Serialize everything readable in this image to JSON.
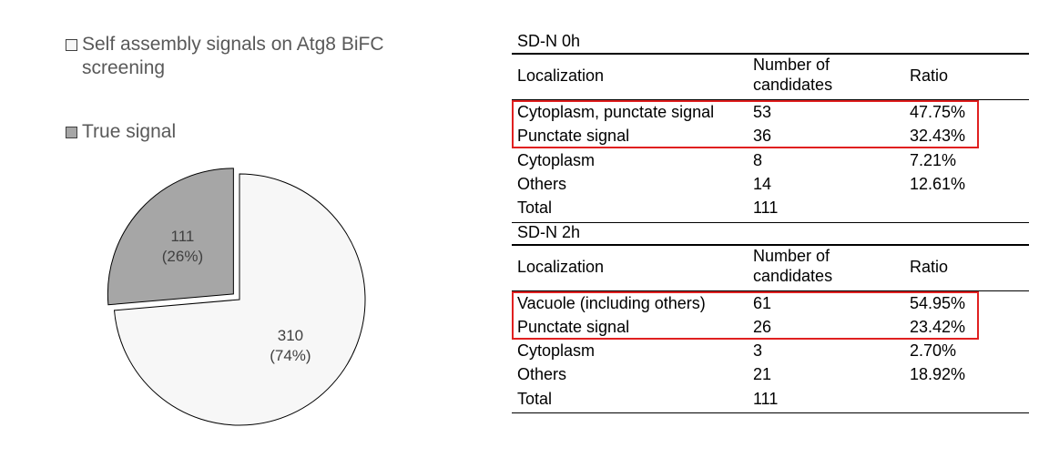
{
  "chart_data": {
    "type": "pie",
    "categories": [
      "Self assembly signals on Atg8 BiFC screening",
      "True signal"
    ],
    "values": [
      310,
      111
    ],
    "percent_labels": [
      "(74%)",
      "(26%)"
    ],
    "colors": [
      "#f7f7f7",
      "#a6a6a6"
    ],
    "explode": [
      false,
      true
    ]
  },
  "tables": [
    {
      "title": "SD-N 0h",
      "columns": [
        "Localization",
        "Number of candidates",
        "Ratio"
      ],
      "rows": [
        [
          "Cytoplasm, punctate signal",
          "53",
          "47.75%"
        ],
        [
          "Punctate signal",
          "36",
          "32.43%"
        ],
        [
          "Cytoplasm",
          "8",
          "7.21%"
        ],
        [
          "Others",
          "14",
          "12.61%"
        ],
        [
          "Total",
          "111"
        ]
      ]
    },
    {
      "title": "SD-N 2h",
      "columns": [
        "Localization",
        "Number of candidates",
        "Ratio"
      ],
      "rows": [
        [
          "Vacuole (including others)",
          "61",
          "54.95%"
        ],
        [
          "Punctate signal",
          "26",
          "23.42%"
        ],
        [
          "Cytoplasm",
          "3",
          "2.70%"
        ],
        [
          "Others",
          "21",
          "18.92%"
        ],
        [
          "Total",
          "111"
        ]
      ]
    }
  ]
}
